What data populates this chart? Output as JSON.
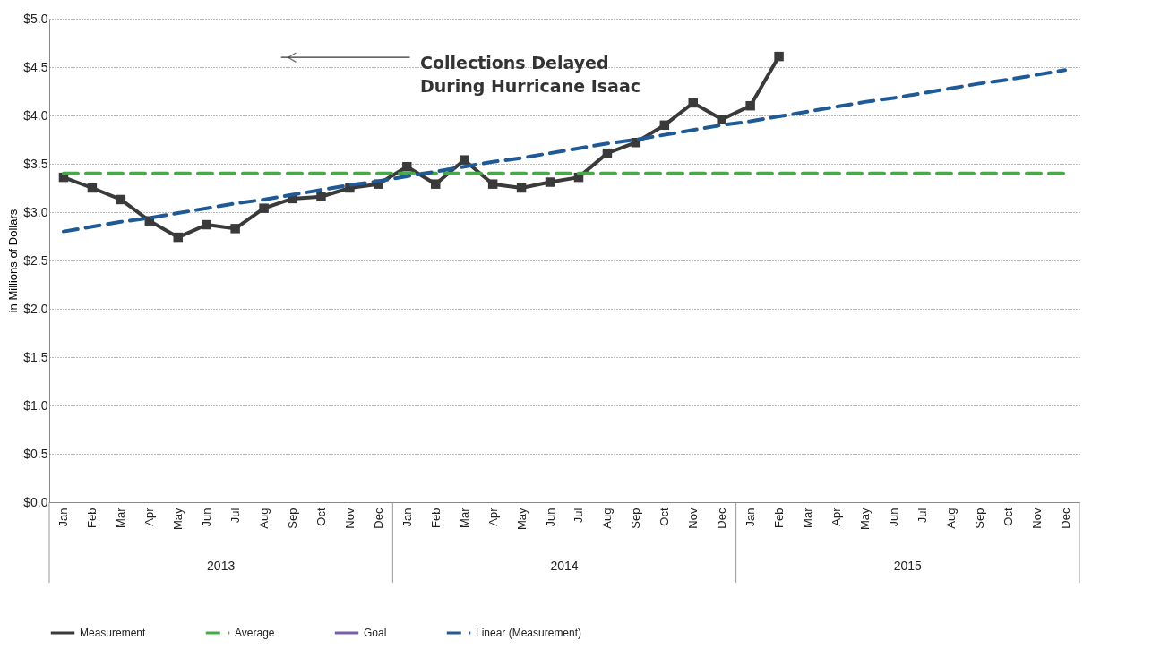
{
  "chart_data": {
    "type": "line",
    "ylabel": "in Millions of Dollars",
    "categories": [
      "Jan",
      "Feb",
      "Mar",
      "Apr",
      "May",
      "Jun",
      "Jul",
      "Aug",
      "Sep",
      "Oct",
      "Nov",
      "Dec",
      "Jan",
      "Feb",
      "Mar",
      "Apr",
      "May",
      "Jun",
      "Jul",
      "Aug",
      "Sep",
      "Oct",
      "Nov",
      "Dec",
      "Jan",
      "Feb",
      "Mar",
      "Apr",
      "May",
      "Jun",
      "Jul",
      "Aug",
      "Sep",
      "Oct",
      "Nov",
      "Dec"
    ],
    "series": [
      {
        "name": "Measurement",
        "color": "#3a3a3a",
        "marker": "square",
        "line_style": "solid",
        "values": [
          3.36,
          3.25,
          3.13,
          2.91,
          2.74,
          2.87,
          2.83,
          3.04,
          3.14,
          3.16,
          3.25,
          3.29,
          3.47,
          3.29,
          3.54,
          3.29,
          3.25,
          3.31,
          3.36,
          3.61,
          3.72,
          3.9,
          4.13,
          3.96,
          4.1,
          4.61,
          null,
          null,
          null,
          null,
          null,
          null,
          null,
          null,
          null,
          null
        ]
      },
      {
        "name": "Average",
        "color": "#4aa84a",
        "line_style": "dashed",
        "values": [
          3.4,
          3.4,
          3.4,
          3.4,
          3.4,
          3.4,
          3.4,
          3.4,
          3.4,
          3.4,
          3.4,
          3.4,
          3.4,
          3.4,
          3.4,
          3.4,
          3.4,
          3.4,
          3.4,
          3.4,
          3.4,
          3.4,
          3.4,
          3.4,
          3.4,
          3.4,
          3.4,
          3.4,
          3.4,
          3.4,
          3.4,
          3.4,
          3.4,
          3.4,
          3.4,
          3.4
        ]
      },
      {
        "name": "Goal",
        "color": "#7a5fa8",
        "line_style": "solid",
        "values": [
          null,
          null,
          null,
          null,
          null,
          null,
          null,
          null,
          null,
          null,
          null,
          null,
          null,
          null,
          null,
          null,
          null,
          null,
          null,
          null,
          null,
          null,
          null,
          null,
          null,
          null,
          null,
          null,
          null,
          null,
          null,
          null,
          null,
          null,
          null,
          null
        ]
      },
      {
        "name": "Linear (Measurement)",
        "color": "#1f5a96",
        "line_style": "dashed",
        "values": [
          2.8,
          2.85,
          2.9,
          2.94,
          2.99,
          3.04,
          3.09,
          3.13,
          3.18,
          3.23,
          3.28,
          3.32,
          3.37,
          3.42,
          3.47,
          3.52,
          3.56,
          3.61,
          3.66,
          3.71,
          3.75,
          3.8,
          3.85,
          3.9,
          3.94,
          3.99,
          4.04,
          4.09,
          4.14,
          4.18,
          4.23,
          4.28,
          4.33,
          4.37,
          4.42,
          4.47
        ]
      }
    ],
    "ylim": [
      0,
      5
    ],
    "yticks": [
      {
        "value": 0,
        "label": "$0.0"
      },
      {
        "value": 0.5,
        "label": "$0.5"
      },
      {
        "value": 1,
        "label": "$1.0"
      },
      {
        "value": 1.5,
        "label": "$1.5"
      },
      {
        "value": 2,
        "label": "$2.0"
      },
      {
        "value": 2.5,
        "label": "$2.5"
      },
      {
        "value": 3,
        "label": "$3.0"
      },
      {
        "value": 3.5,
        "label": "$3.5"
      },
      {
        "value": 4,
        "label": "$4.0"
      },
      {
        "value": 4.5,
        "label": "$4.5"
      },
      {
        "value": 5,
        "label": "$5.0"
      }
    ],
    "grid": "y",
    "legend": "bottom",
    "annotations": [
      "Collections Delayed\nDuring  Hurricane Isaac",
      "2013",
      "2014",
      "2015"
    ]
  }
}
